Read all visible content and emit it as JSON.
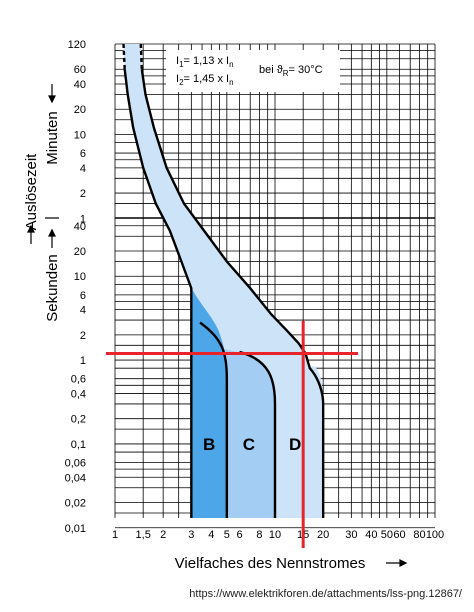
{
  "chart_data": {
    "type": "area",
    "y_scale": "log",
    "x_scale": "log",
    "xlim": [
      1,
      100
    ],
    "ylim_seconds": [
      0.01,
      7200
    ],
    "grid": true,
    "xlabel": "Vielfaches des Nennstromes",
    "ylabel_main": "Auslösezeit",
    "ylabel_seconds": "Sekunden",
    "ylabel_minutes": "Minuten",
    "x_ticks": [
      "1",
      "1,5",
      "2",
      "3",
      "4",
      "5",
      "6",
      "8",
      "10",
      "15",
      "20",
      "30",
      "40",
      "50",
      "60",
      "80",
      "100"
    ],
    "x_tick_values": [
      1,
      1.5,
      2,
      3,
      4,
      5,
      6,
      8,
      10,
      15,
      20,
      30,
      40,
      50,
      60,
      80,
      100
    ],
    "y_ticks_minutes": [
      {
        "label": "120",
        "minutes": 120
      },
      {
        "label": "60",
        "minutes": 60
      },
      {
        "label": "40",
        "minutes": 40
      },
      {
        "label": "20",
        "minutes": 20
      },
      {
        "label": "10",
        "minutes": 10
      },
      {
        "label": "6",
        "minutes": 6
      },
      {
        "label": "4",
        "minutes": 4
      },
      {
        "label": "2",
        "minutes": 2
      },
      {
        "label": "1",
        "minutes": 1
      }
    ],
    "y_ticks_seconds": [
      {
        "label": "40",
        "seconds": 40
      },
      {
        "label": "20",
        "seconds": 20
      },
      {
        "label": "10",
        "seconds": 10
      },
      {
        "label": "6",
        "seconds": 6
      },
      {
        "label": "4",
        "seconds": 4
      },
      {
        "label": "2",
        "seconds": 2
      },
      {
        "label": "1",
        "seconds": 1
      },
      {
        "label": "0,6",
        "seconds": 0.6
      },
      {
        "label": "0,4",
        "seconds": 0.4
      },
      {
        "label": "0,2",
        "seconds": 0.2
      },
      {
        "label": "0,1",
        "seconds": 0.1
      },
      {
        "label": "0,06",
        "seconds": 0.06
      },
      {
        "label": "0,04",
        "seconds": 0.04
      },
      {
        "label": "0,02",
        "seconds": 0.02
      },
      {
        "label": "0,01",
        "seconds": 0.01
      }
    ],
    "thermal_band": {
      "lower": [
        [
          1.13,
          7200
        ],
        [
          1.15,
          3600
        ],
        [
          1.2,
          1800
        ],
        [
          1.3,
          720
        ],
        [
          1.5,
          240
        ],
        [
          1.8,
          90
        ],
        [
          2.2,
          35
        ],
        [
          2.6,
          15
        ],
        [
          3,
          7.2
        ]
      ],
      "upper": [
        [
          1.45,
          7200
        ],
        [
          1.47,
          3600
        ],
        [
          1.55,
          1800
        ],
        [
          1.75,
          720
        ],
        [
          2.1,
          240
        ],
        [
          2.7,
          90
        ],
        [
          3.6,
          35
        ],
        [
          5,
          15
        ],
        [
          7,
          7.2
        ],
        [
          9.5,
          3.5
        ],
        [
          12,
          2.2
        ],
        [
          14,
          1.6
        ],
        [
          15.5,
          1.2
        ],
        [
          16.5,
          0.8
        ]
      ]
    },
    "series": [
      {
        "name": "B",
        "instant_from": 3,
        "instant_to": 5,
        "color": "#4da6e8"
      },
      {
        "name": "C",
        "instant_from": 5,
        "instant_to": 10,
        "color": "#a3cdf3"
      },
      {
        "name": "D",
        "instant_from": 10,
        "instant_to": 20,
        "color": "#cde3f7"
      }
    ],
    "annotations": {
      "i1_main": "I",
      "i1_sub": "1",
      "i1_rest": "= 1,13 x I",
      "i1_n": "n",
      "i2_main": "I",
      "i2_sub": "2",
      "i2_rest": "= 1,45 x I",
      "i2_n": "n",
      "temp_main": "bei ϑ",
      "temp_sub": "R",
      "temp_rest": "= 30°C"
    },
    "marker": {
      "x": 15,
      "y_seconds": 1.2,
      "color": "#e8232a"
    }
  },
  "source_text": "https://www.elektrikforen.de/attachments/lss-png.12867/"
}
